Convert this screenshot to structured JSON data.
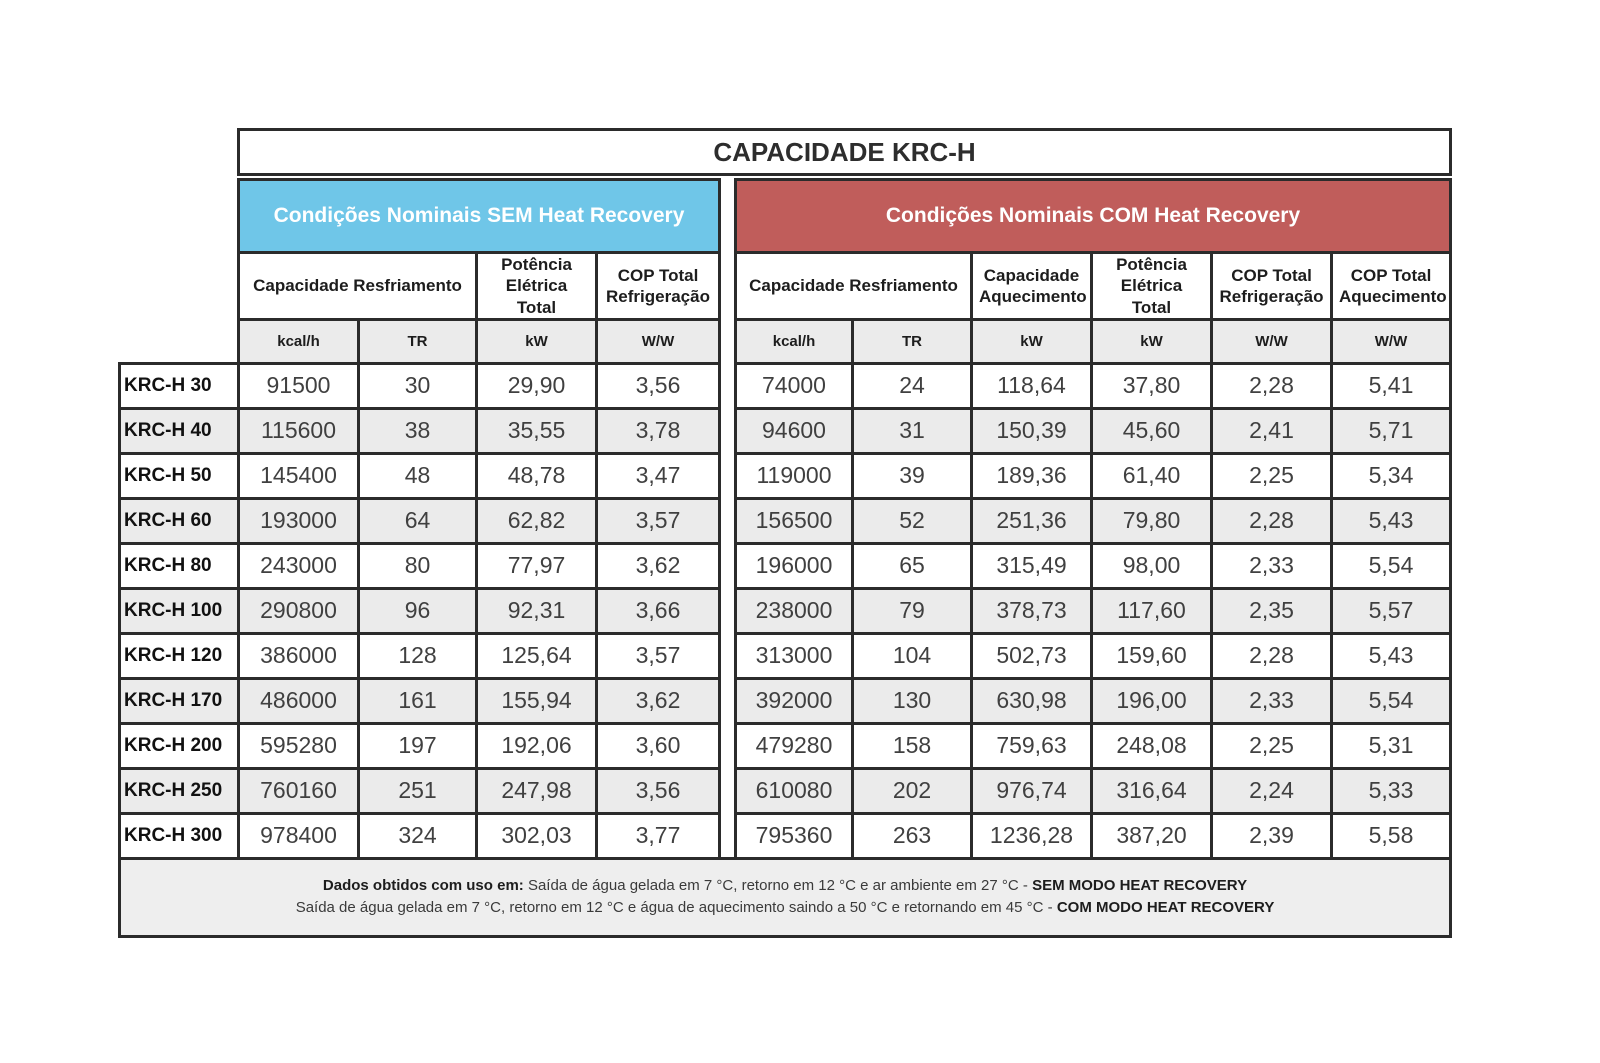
{
  "title": "CAPACIDADE KRC-H",
  "sections": {
    "sem": {
      "label": "Condições Nominais SEM Heat Recovery",
      "color": "#6FC6E8",
      "columns": [
        {
          "label": "Capacidade Resfriamento"
        },
        {
          "label": "Potência Elétrica Total"
        },
        {
          "label": "COP Total Refrigeração"
        }
      ],
      "units": [
        "kcal/h",
        "TR",
        "kW",
        "W/W"
      ]
    },
    "com": {
      "label": "Condições Nominais COM Heat Recovery",
      "color": "#C05D5B",
      "columns": [
        {
          "label": "Capacidade Resfriamento"
        },
        {
          "label": "Capacidade Aquecimento"
        },
        {
          "label": "Potência Elétrica Total"
        },
        {
          "label": "COP Total Refrigeração"
        },
        {
          "label": "COP Total Aquecimento"
        }
      ],
      "units": [
        "kcal/h",
        "TR",
        "kW",
        "kW",
        "W/W",
        "W/W"
      ]
    }
  },
  "rows": [
    {
      "model": "KRC-H 30",
      "sem": [
        "91500",
        "30",
        "29,90",
        "3,56"
      ],
      "com": [
        "74000",
        "24",
        "118,64",
        "37,80",
        "2,28",
        "5,41"
      ]
    },
    {
      "model": "KRC-H 40",
      "sem": [
        "115600",
        "38",
        "35,55",
        "3,78"
      ],
      "com": [
        "94600",
        "31",
        "150,39",
        "45,60",
        "2,41",
        "5,71"
      ]
    },
    {
      "model": "KRC-H 50",
      "sem": [
        "145400",
        "48",
        "48,78",
        "3,47"
      ],
      "com": [
        "119000",
        "39",
        "189,36",
        "61,40",
        "2,25",
        "5,34"
      ]
    },
    {
      "model": "KRC-H 60",
      "sem": [
        "193000",
        "64",
        "62,82",
        "3,57"
      ],
      "com": [
        "156500",
        "52",
        "251,36",
        "79,80",
        "2,28",
        "5,43"
      ]
    },
    {
      "model": "KRC-H 80",
      "sem": [
        "243000",
        "80",
        "77,97",
        "3,62"
      ],
      "com": [
        "196000",
        "65",
        "315,49",
        "98,00",
        "2,33",
        "5,54"
      ]
    },
    {
      "model": "KRC-H 100",
      "sem": [
        "290800",
        "96",
        "92,31",
        "3,66"
      ],
      "com": [
        "238000",
        "79",
        "378,73",
        "117,60",
        "2,35",
        "5,57"
      ]
    },
    {
      "model": "KRC-H 120",
      "sem": [
        "386000",
        "128",
        "125,64",
        "3,57"
      ],
      "com": [
        "313000",
        "104",
        "502,73",
        "159,60",
        "2,28",
        "5,43"
      ]
    },
    {
      "model": "KRC-H 170",
      "sem": [
        "486000",
        "161",
        "155,94",
        "3,62"
      ],
      "com": [
        "392000",
        "130",
        "630,98",
        "196,00",
        "2,33",
        "5,54"
      ]
    },
    {
      "model": "KRC-H 200",
      "sem": [
        "595280",
        "197",
        "192,06",
        "3,60"
      ],
      "com": [
        "479280",
        "158",
        "759,63",
        "248,08",
        "2,25",
        "5,31"
      ]
    },
    {
      "model": "KRC-H 250",
      "sem": [
        "760160",
        "251",
        "247,98",
        "3,56"
      ],
      "com": [
        "610080",
        "202",
        "976,74",
        "316,64",
        "2,24",
        "5,33"
      ]
    },
    {
      "model": "KRC-H 300",
      "sem": [
        "978400",
        "324",
        "302,03",
        "3,77"
      ],
      "com": [
        "795360",
        "263",
        "1236,28",
        "387,20",
        "2,39",
        "5,58"
      ]
    }
  ],
  "footer": {
    "line1_prefix": "Dados obtidos  com uso em:",
    "line1_text": " Saída de água gelada em 7 °C, retorno em 12 °C e ar ambiente em 27 °C - ",
    "line1_bold": "SEM MODO HEAT RECOVERY",
    "line2_text": "Saída de água gelada em 7 °C, retorno em 12 °C e água de aquecimento saindo a 50 °C e retornando em 45 °C - ",
    "line2_bold": "COM MODO HEAT RECOVERY"
  }
}
